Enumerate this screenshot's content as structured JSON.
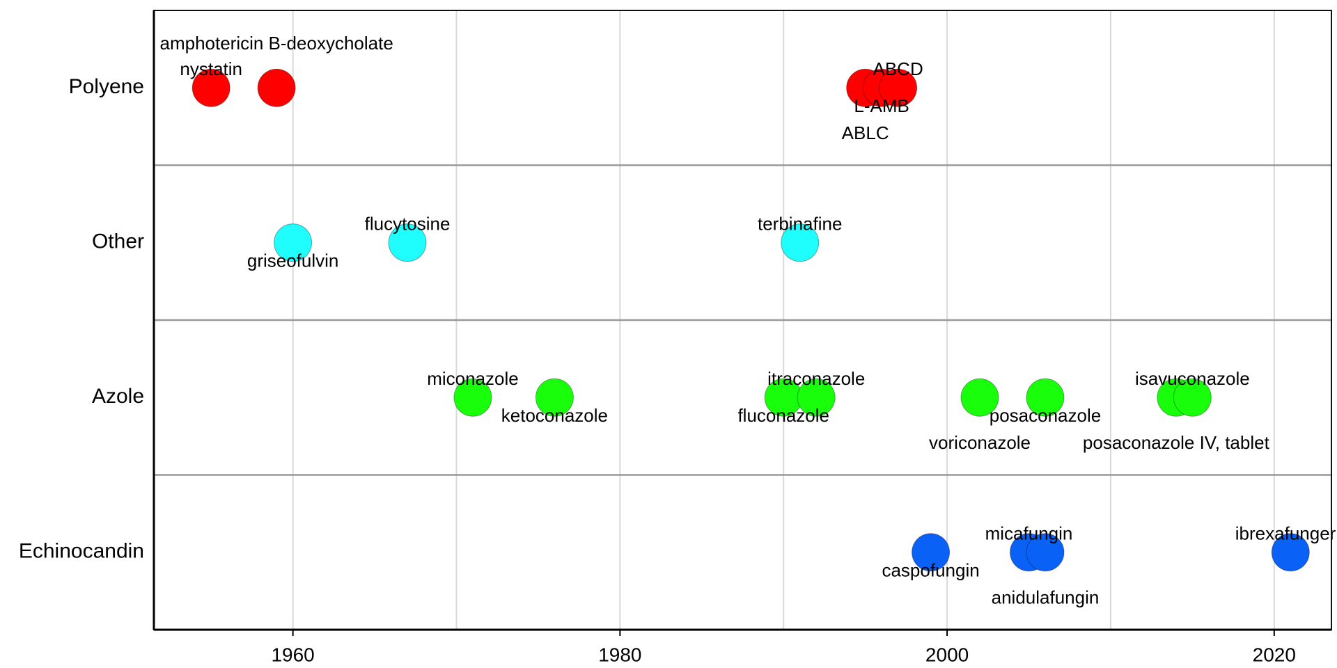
{
  "chart_data": {
    "type": "scatter",
    "title": "",
    "xlabel": "",
    "ylabel": "",
    "xlim": [
      1951.5,
      2023.5
    ],
    "xticks": [
      1960,
      1980,
      2000,
      2020
    ],
    "grid": true,
    "legend": "none",
    "categories": [
      "Polyene",
      "Other",
      "Azole",
      "Echinocandin"
    ],
    "colors": {
      "Polyene": "#ff0000",
      "Other": "#1ffdfd",
      "Azole": "#19ff0b",
      "Echinocandin": "#0a61f6"
    },
    "points": [
      {
        "category": "Polyene",
        "year": 1955,
        "label": "nystatin",
        "label_pos": "above"
      },
      {
        "category": "Polyene",
        "year": 1959,
        "label": "amphotericin B-deoxycholate",
        "label_pos": "above2"
      },
      {
        "category": "Polyene",
        "year": 1995,
        "label": "ABLC",
        "label_pos": "below2"
      },
      {
        "category": "Polyene",
        "year": 1996,
        "label": "L-AMB",
        "label_pos": "below"
      },
      {
        "category": "Polyene",
        "year": 1997,
        "label": "ABCD",
        "label_pos": "above"
      },
      {
        "category": "Other",
        "year": 1960,
        "label": "griseofulvin",
        "label_pos": "below"
      },
      {
        "category": "Other",
        "year": 1967,
        "label": "flucytosine",
        "label_pos": "above"
      },
      {
        "category": "Other",
        "year": 1991,
        "label": "terbinafine",
        "label_pos": "above"
      },
      {
        "category": "Azole",
        "year": 1971,
        "label": "miconazole",
        "label_pos": "above"
      },
      {
        "category": "Azole",
        "year": 1976,
        "label": "ketoconazole",
        "label_pos": "below"
      },
      {
        "category": "Azole",
        "year": 1990,
        "label": "fluconazole",
        "label_pos": "below"
      },
      {
        "category": "Azole",
        "year": 1992,
        "label": "itraconazole",
        "label_pos": "above"
      },
      {
        "category": "Azole",
        "year": 2002,
        "label": "voriconazole",
        "label_pos": "below2"
      },
      {
        "category": "Azole",
        "year": 2006,
        "label": "posaconazole",
        "label_pos": "below"
      },
      {
        "category": "Azole",
        "year": 2014,
        "label": "posaconazole IV, tablet",
        "label_pos": "below2"
      },
      {
        "category": "Azole",
        "year": 2015,
        "label": "isavuconazole",
        "label_pos": "above"
      },
      {
        "category": "Echinocandin",
        "year": 1999,
        "label": "caspofungin",
        "label_pos": "below"
      },
      {
        "category": "Echinocandin",
        "year": 2005,
        "label": "micafungin",
        "label_pos": "above"
      },
      {
        "category": "Echinocandin",
        "year": 2006,
        "label": "anidulafungin",
        "label_pos": "below2"
      },
      {
        "category": "Echinocandin",
        "year": 2021,
        "label": "ibrexafungerp",
        "label_pos": "above"
      }
    ]
  }
}
